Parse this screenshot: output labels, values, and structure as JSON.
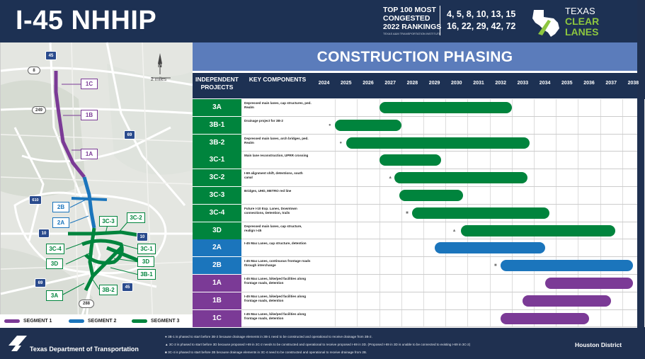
{
  "header": {
    "title": "I-45 NHHIP",
    "ranking_label_1": "TOP 100 MOST",
    "ranking_label_2": "CONGESTED",
    "ranking_label_3": "2022 RANKINGS",
    "ranking_source": "TEXAS A&M TRANSPORTATION INSTITUTE",
    "ranks_line_1": "4, 5, 8, 10, 13, 15",
    "ranks_line_2": "16, 22, 29, 42, 72",
    "logo_line_1": "TEXAS",
    "logo_line_2": "CLEAR",
    "logo_line_3": "LANES"
  },
  "map": {
    "scale_label": "2 miles",
    "north_label": "N",
    "highway_shields": [
      "45",
      "8",
      "249",
      "69",
      "610",
      "10",
      "10",
      "69",
      "45",
      "288"
    ],
    "segment_labels": [
      "1C",
      "1B",
      "1A",
      "2B",
      "2A",
      "3C-3",
      "3C-2",
      "3C-4",
      "3C-1",
      "3D",
      "3D",
      "3B-1",
      "3A",
      "3B-2"
    ],
    "legend": {
      "segment1": "SEGMENT 1",
      "segment2": "SEGMENT 2",
      "segment3": "SEGMENT 3"
    },
    "colors": {
      "segment1": "#7b3a96",
      "segment2": "#1b75bc",
      "segment3": "#00843d"
    }
  },
  "panel": {
    "banner": "CONSTRUCTION PHASING",
    "col_projects": "INDEPENDENT PROJECTS",
    "col_components": "KEY COMPONENTS"
  },
  "chart_data": {
    "type": "gantt",
    "years": [
      "2024",
      "2025",
      "2026",
      "2027",
      "2028",
      "2029",
      "2030",
      "2031",
      "2032",
      "2033",
      "2034",
      "2035",
      "2036",
      "2037",
      "2038"
    ],
    "rows": [
      {
        "id": "3A",
        "segment": 3,
        "desc": "Depressed main lanes, cap structures, ped. Realm",
        "start": 2026.5,
        "end": 2032.5
      },
      {
        "id": "3B-1",
        "segment": 3,
        "desc": "Drainage project for 3B-2",
        "start": 2024.5,
        "end": 2027.5,
        "marker": "circle",
        "marker_at": 2024.3
      },
      {
        "id": "3B-2",
        "segment": 3,
        "desc": "Depressed main lanes, arch bridges, ped. Realm",
        "start": 2025.0,
        "end": 2033.3,
        "marker": "circle",
        "marker_at": 2024.8
      },
      {
        "id": "3C-1",
        "segment": 3,
        "desc": "Main lane reconstruction, UPRR crossing",
        "start": 2026.5,
        "end": 2029.3
      },
      {
        "id": "3C-2",
        "segment": 3,
        "desc": "I-69 alignment shift, detentions, south canal",
        "start": 2027.2,
        "end": 2033.2,
        "marker": "triangle",
        "marker_at": 2027.0
      },
      {
        "id": "3C-3",
        "segment": 3,
        "desc": "Bridges, UHD, METRO red line",
        "start": 2027.4,
        "end": 2030.3
      },
      {
        "id": "3C-4",
        "segment": 3,
        "desc": "Future I-10 Exp. Lanes, Downtown connections, Detention, trails",
        "start": 2028.0,
        "end": 2034.2,
        "marker": "square",
        "marker_at": 2027.8
      },
      {
        "id": "3D",
        "segment": 3,
        "desc": "Depressed main lanes, cap structure, realign I-45",
        "start": 2030.2,
        "end": 2037.2,
        "marker": "triangle",
        "marker_at": 2029.9
      },
      {
        "id": "2A",
        "segment": 2,
        "desc": "I-45 Max Lanes, cap structure, detention",
        "start": 2029.0,
        "end": 2034.0
      },
      {
        "id": "2B",
        "segment": 2,
        "desc": "I-45 Max Lanes, continuous frontage roads through interchange",
        "start": 2032.0,
        "end": 2038.0,
        "marker": "square",
        "marker_at": 2031.8
      },
      {
        "id": "1A",
        "segment": 1,
        "desc": "I-45 Max Lanes, bike/ped facilities along frontage roads, detention",
        "start": 2034.0,
        "end": 2038.0
      },
      {
        "id": "1B",
        "segment": 1,
        "desc": "I-45 Max Lanes, bike/ped facilities along frontage roads, detention",
        "start": 2033.0,
        "end": 2037.0
      },
      {
        "id": "1C",
        "segment": 1,
        "desc": "I-45 Max Lanes, bike/ped facilities along frontage roads, detention",
        "start": 2032.0,
        "end": 2036.0
      }
    ],
    "colors": {
      "1": "#7b3a96",
      "2": "#1b75bc",
      "3": "#00843d"
    }
  },
  "notes": {
    "n1": "3B-1 is phased to start before 3B-2 because drainage elements in 3B-1 need to be constructed and operational to receive drainage from 3B-2.",
    "n2": "3C-2 is phased to start before 3D because proposed I-69 in 3C-2 needs to be constructed and operational to receive proposed I-69 in 3D. (Proposed I-69 in 3D is unable to be connected to existing I-69 in 3C-2)",
    "n3": "3C-4 is phased to start before 2B because drainage elements in 3C-4 need to be constructed and operational to receive drainage from 2B."
  },
  "footer": {
    "agency": "Texas Department of Transportation",
    "district": "Houston District"
  }
}
